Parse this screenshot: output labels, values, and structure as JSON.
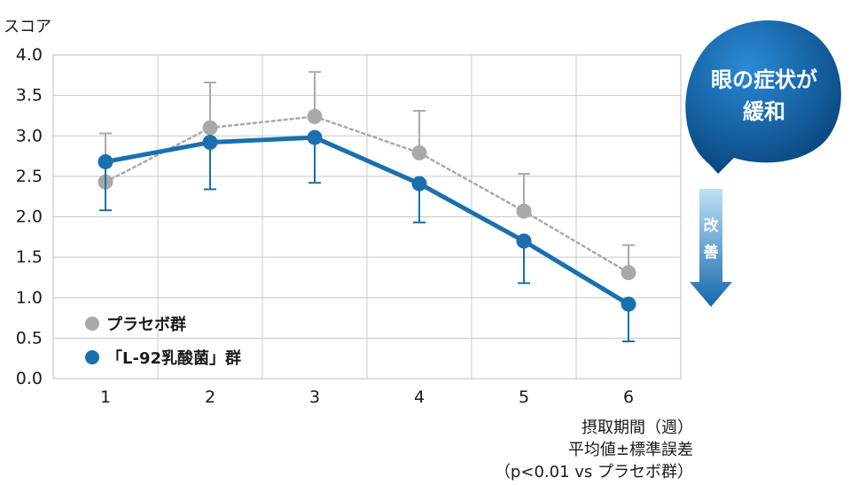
{
  "chart_data": {
    "type": "line",
    "ylabel": "スコア",
    "ylim": [
      0,
      4.0
    ],
    "yticks": [
      "0.0",
      "0.5",
      "1.0",
      "1.5",
      "2.0",
      "2.5",
      "3.0",
      "3.5",
      "4.0"
    ],
    "categories": [
      "1",
      "2",
      "3",
      "4",
      "5",
      "6"
    ],
    "grid": true,
    "legend_position": "bottom-left",
    "series": [
      {
        "name": "プラセボ群",
        "color": "#a9a9a9",
        "style": "dotted",
        "values": [
          2.43,
          3.1,
          3.24,
          2.79,
          2.07,
          1.31
        ],
        "error_upper": [
          3.03,
          3.66,
          3.79,
          3.31,
          2.53,
          1.65
        ]
      },
      {
        "name": "「L-92乳酸菌」群",
        "color": "#1a6fae",
        "style": "solid",
        "values": [
          2.68,
          2.92,
          2.98,
          2.41,
          1.7,
          0.92
        ],
        "error_lower": [
          2.08,
          2.34,
          2.42,
          1.93,
          1.18,
          0.46
        ]
      }
    ]
  },
  "notes": {
    "line1": "摂取期間（週）",
    "line2": "平均値±標準誤差",
    "line3": "（p<0.01 vs プラセボ群）"
  },
  "callout": {
    "line1": "眼の症状が",
    "line2": "緩和",
    "color": "#0b4f8e"
  },
  "improvement_arrow": {
    "char1": "改",
    "char2": "善",
    "color": "#1d73b8"
  }
}
